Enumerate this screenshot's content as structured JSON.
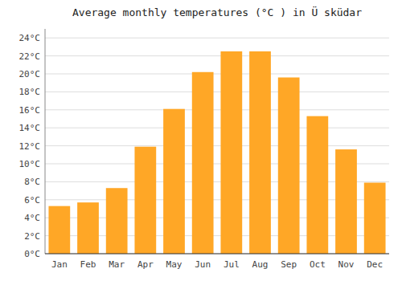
{
  "chart_data": {
    "type": "bar",
    "title": "Average monthly temperatures (°C ) in Ü sküdar",
    "categories": [
      "Jan",
      "Feb",
      "Mar",
      "Apr",
      "May",
      "Jun",
      "Jul",
      "Aug",
      "Sep",
      "Oct",
      "Nov",
      "Dec"
    ],
    "values": [
      5.3,
      5.7,
      7.3,
      11.9,
      16.1,
      20.2,
      22.5,
      22.5,
      19.6,
      15.3,
      11.6,
      7.9
    ],
    "color": "#FFA726",
    "ylim": [
      0,
      25
    ],
    "yticks": [
      {
        "value": 0,
        "label": "0°C"
      },
      {
        "value": 2,
        "label": "2°C"
      },
      {
        "value": 4,
        "label": "4°C"
      },
      {
        "value": 6,
        "label": "6°C"
      },
      {
        "value": 8,
        "label": "8°C"
      },
      {
        "value": 10,
        "label": "10°C"
      },
      {
        "value": 12,
        "label": "12°C"
      },
      {
        "value": 14,
        "label": "14°C"
      },
      {
        "value": 16,
        "label": "16°C"
      },
      {
        "value": 18,
        "label": "18°C"
      },
      {
        "value": 20,
        "label": "20°C"
      },
      {
        "value": 22,
        "label": "22°C"
      },
      {
        "value": 24,
        "label": "24°C"
      }
    ],
    "grid": true
  }
}
